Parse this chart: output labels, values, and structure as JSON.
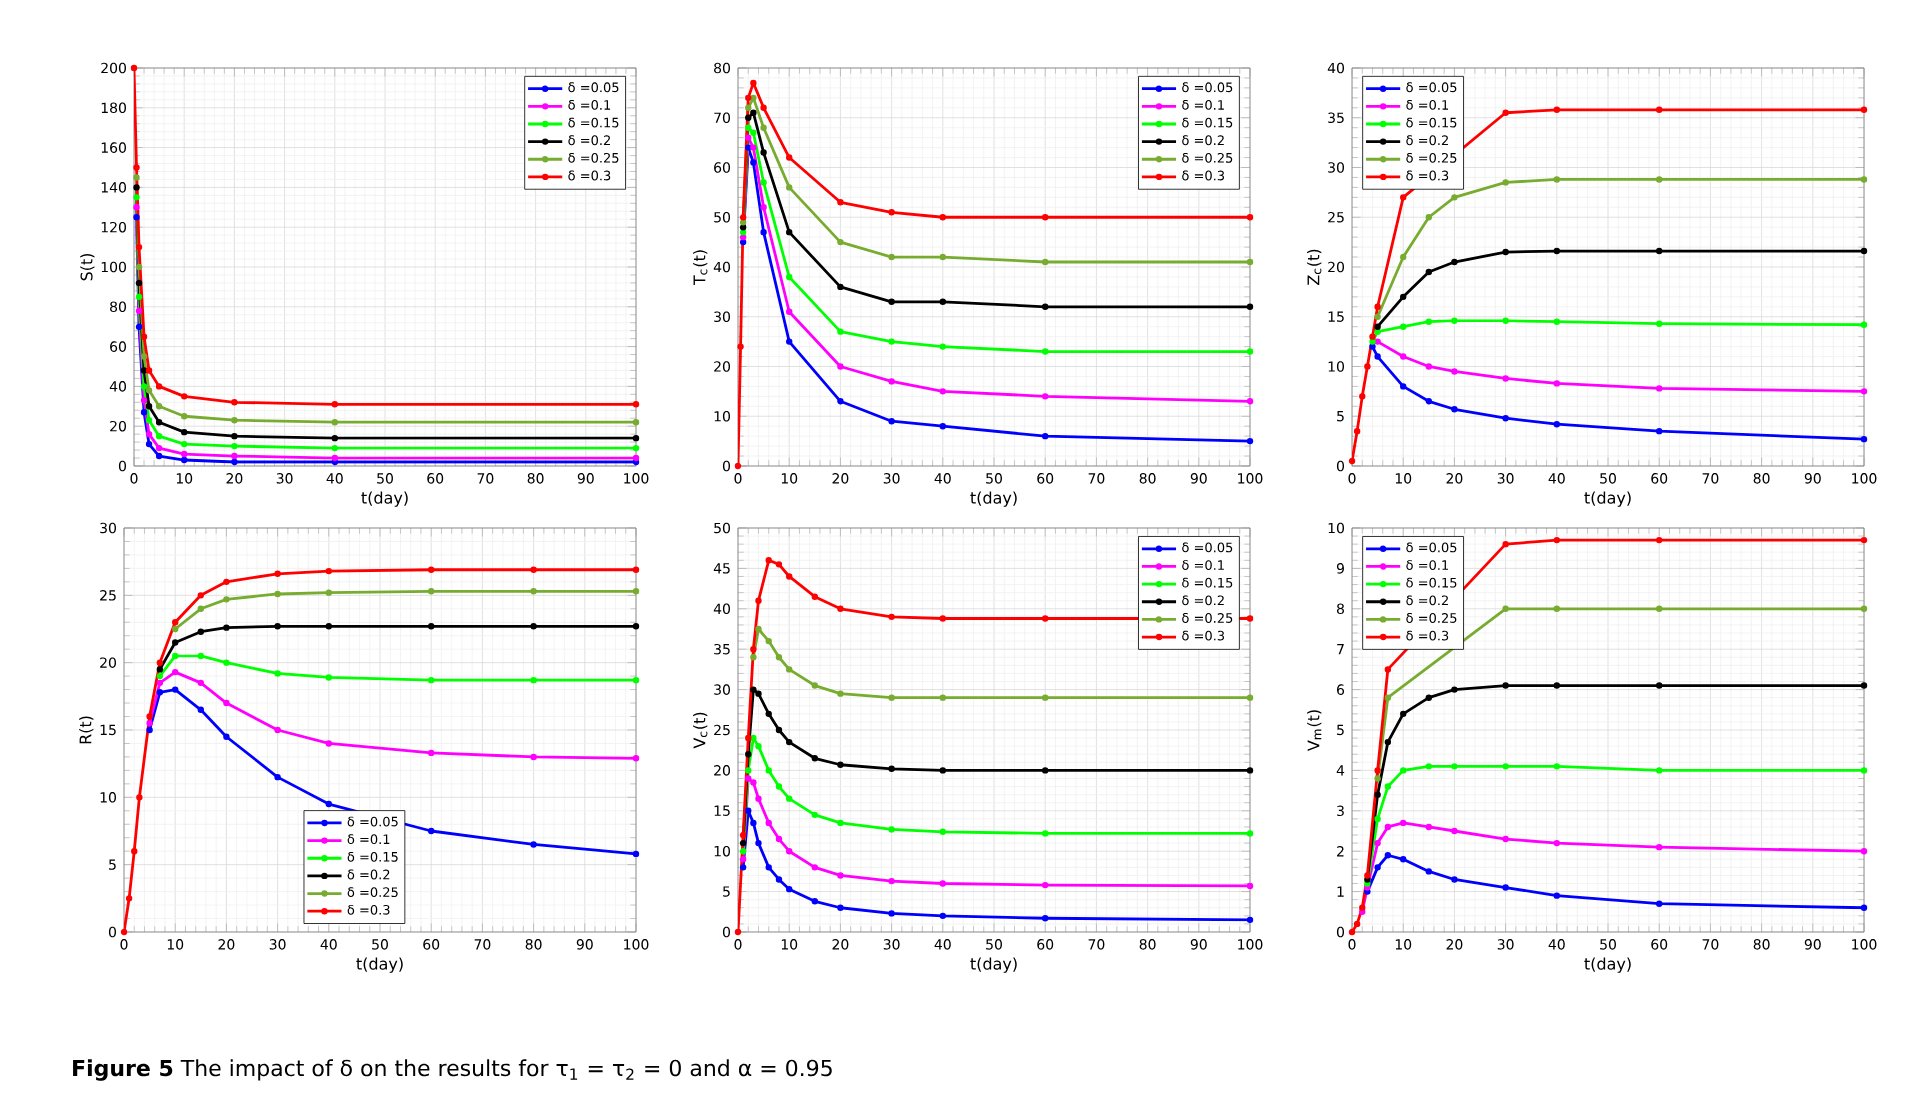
{
  "chart_data": [
    {
      "type": "line",
      "xlabel": "t(day)",
      "ylabel": "S(t)",
      "xlim": [
        0,
        100
      ],
      "xticks": [
        0,
        10,
        20,
        30,
        40,
        50,
        60,
        70,
        80,
        90,
        100
      ],
      "ylim": [
        0,
        200
      ],
      "yticks": [
        0,
        20,
        40,
        60,
        80,
        100,
        120,
        140,
        160,
        180,
        200
      ],
      "grid": true,
      "legend": "top right",
      "marker": "circle",
      "x": [
        0,
        0.5,
        1,
        2,
        3,
        5,
        10,
        20,
        40,
        100
      ],
      "series": [
        {
          "name": "δ =0.05",
          "color": "#0000ff",
          "values": [
            null,
            125,
            70,
            27,
            11,
            5,
            3,
            2,
            2,
            2
          ]
        },
        {
          "name": "δ =0.1",
          "color": "#ff00ff",
          "values": [
            null,
            130,
            78,
            33,
            16,
            9,
            6,
            5,
            4,
            4
          ]
        },
        {
          "name": "δ =0.15",
          "color": "#00ff00",
          "values": [
            null,
            135,
            85,
            40,
            23,
            15,
            11,
            10,
            9,
            9
          ]
        },
        {
          "name": "δ =0.2",
          "color": "#000000",
          "values": [
            null,
            140,
            92,
            48,
            30,
            22,
            17,
            15,
            14,
            14
          ]
        },
        {
          "name": "δ =0.25",
          "color": "#77ac30",
          "values": [
            null,
            145,
            100,
            55,
            38,
            30,
            25,
            23,
            22,
            22
          ]
        },
        {
          "name": "δ =0.3",
          "color": "#ff0000",
          "values": [
            200,
            150,
            110,
            65,
            48,
            40,
            35,
            32,
            31,
            31
          ]
        }
      ]
    },
    {
      "type": "line",
      "xlabel": "t(day)",
      "ylabel": "T$_{c}$(t)",
      "xlim": [
        0,
        100
      ],
      "xticks": [
        0,
        10,
        20,
        30,
        40,
        50,
        60,
        70,
        80,
        90,
        100
      ],
      "ylim": [
        0,
        80
      ],
      "yticks": [
        0,
        10,
        20,
        30,
        40,
        50,
        60,
        70,
        80
      ],
      "grid": true,
      "legend": "top right",
      "marker": "circle",
      "x": [
        0,
        0.5,
        1,
        2,
        3,
        5,
        10,
        20,
        30,
        40,
        60,
        100
      ],
      "series": [
        {
          "name": "δ =0.05",
          "color": "#0000ff",
          "values": [
            null,
            null,
            45,
            64,
            61,
            47,
            25,
            13,
            9,
            8,
            6,
            5
          ]
        },
        {
          "name": "δ =0.1",
          "color": "#ff00ff",
          "values": [
            null,
            null,
            46,
            66,
            64,
            52,
            31,
            20,
            17,
            15,
            14,
            13
          ]
        },
        {
          "name": "δ =0.15",
          "color": "#00ff00",
          "values": [
            null,
            null,
            47,
            68,
            67,
            57,
            38,
            27,
            25,
            24,
            23,
            23
          ]
        },
        {
          "name": "δ =0.2",
          "color": "#000000",
          "values": [
            null,
            null,
            48,
            70,
            71,
            63,
            47,
            36,
            33,
            33,
            32,
            32
          ]
        },
        {
          "name": "δ =0.25",
          "color": "#77ac30",
          "values": [
            null,
            null,
            49,
            72,
            74,
            68,
            56,
            45,
            42,
            42,
            41,
            41
          ]
        },
        {
          "name": "δ =0.3",
          "color": "#ff0000",
          "values": [
            0,
            24,
            50,
            74,
            77,
            72,
            62,
            53,
            51,
            50,
            50,
            50
          ]
        }
      ]
    },
    {
      "type": "line",
      "xlabel": "t(day)",
      "ylabel": "Z$_{c}$(t)",
      "xlim": [
        0,
        100
      ],
      "xticks": [
        0,
        10,
        20,
        30,
        40,
        50,
        60,
        70,
        80,
        90,
        100
      ],
      "ylim": [
        0,
        40
      ],
      "yticks": [
        0,
        5,
        10,
        15,
        20,
        25,
        30,
        35,
        40
      ],
      "grid": true,
      "legend": "top left",
      "marker": "circle",
      "x": [
        0,
        1,
        2,
        3,
        4,
        5,
        10,
        15,
        20,
        30,
        40,
        60,
        100
      ],
      "series": [
        {
          "name": "δ =0.05",
          "color": "#0000ff",
          "values": [
            null,
            null,
            null,
            null,
            12,
            11,
            8,
            6.5,
            5.7,
            4.8,
            4.2,
            3.5,
            2.7
          ]
        },
        {
          "name": "δ =0.1",
          "color": "#ff00ff",
          "values": [
            null,
            null,
            null,
            null,
            null,
            12.5,
            11,
            10,
            9.5,
            8.8,
            8.3,
            7.8,
            7.5
          ]
        },
        {
          "name": "δ =0.15",
          "color": "#00ff00",
          "values": [
            null,
            null,
            null,
            null,
            12.5,
            13.5,
            14,
            14.5,
            14.6,
            14.6,
            14.5,
            14.3,
            14.2
          ]
        },
        {
          "name": "δ =0.2",
          "color": "#000000",
          "values": [
            null,
            null,
            null,
            null,
            null,
            14,
            17,
            19.5,
            20.5,
            21.5,
            21.6,
            21.6,
            21.6
          ]
        },
        {
          "name": "δ =0.25",
          "color": "#77ac30",
          "values": [
            null,
            null,
            null,
            null,
            null,
            15,
            21,
            25,
            27,
            28.5,
            28.8,
            28.8,
            28.8
          ]
        },
        {
          "name": "δ =0.3",
          "color": "#ff0000",
          "values": [
            0.5,
            3.5,
            7,
            10,
            13,
            16,
            27,
            null,
            null,
            35.5,
            35.8,
            35.8,
            35.8
          ]
        }
      ]
    },
    {
      "type": "line",
      "xlabel": "t(day)",
      "ylabel": "R(t)",
      "xlim": [
        0,
        100
      ],
      "xticks": [
        0,
        10,
        20,
        30,
        40,
        50,
        60,
        70,
        80,
        90,
        100
      ],
      "ylim": [
        0,
        30
      ],
      "yticks": [
        0,
        5,
        10,
        15,
        20,
        25,
        30
      ],
      "grid": true,
      "legend": "bottom",
      "marker": "circle",
      "x": [
        0,
        1,
        2,
        3,
        5,
        7,
        10,
        15,
        20,
        30,
        40,
        60,
        80,
        100
      ],
      "series": [
        {
          "name": "δ =0.05",
          "color": "#0000ff",
          "values": [
            null,
            null,
            null,
            null,
            15,
            17.8,
            18,
            16.5,
            14.5,
            11.5,
            9.5,
            7.5,
            6.5,
            5.8
          ]
        },
        {
          "name": "δ =0.1",
          "color": "#ff00ff",
          "values": [
            null,
            null,
            null,
            null,
            15.5,
            18.5,
            19.3,
            18.5,
            17,
            15,
            14,
            13.3,
            13,
            12.9
          ]
        },
        {
          "name": "δ =0.15",
          "color": "#00ff00",
          "values": [
            null,
            null,
            null,
            null,
            null,
            19,
            20.5,
            20.5,
            20,
            19.2,
            18.9,
            18.7,
            18.7,
            18.7
          ]
        },
        {
          "name": "δ =0.2",
          "color": "#000000",
          "values": [
            null,
            null,
            null,
            null,
            null,
            19.5,
            21.5,
            22.3,
            22.6,
            22.7,
            22.7,
            22.7,
            22.7,
            22.7
          ]
        },
        {
          "name": "δ =0.25",
          "color": "#77ac30",
          "values": [
            null,
            null,
            null,
            null,
            null,
            null,
            22.5,
            24,
            24.7,
            25.1,
            25.2,
            25.3,
            25.3,
            25.3
          ]
        },
        {
          "name": "δ =0.3",
          "color": "#ff0000",
          "values": [
            0,
            2.5,
            6,
            10,
            16,
            20,
            23,
            25,
            26,
            26.6,
            26.8,
            26.9,
            26.9,
            26.9
          ]
        }
      ]
    },
    {
      "type": "line",
      "xlabel": "t(day)",
      "ylabel": "V$_{c}$(t)",
      "xlim": [
        0,
        100
      ],
      "xticks": [
        0,
        10,
        20,
        30,
        40,
        50,
        60,
        70,
        80,
        90,
        100
      ],
      "ylim": [
        0,
        50
      ],
      "yticks": [
        0,
        5,
        10,
        15,
        20,
        25,
        30,
        35,
        40,
        45,
        50
      ],
      "grid": true,
      "legend": "top right",
      "marker": "circle",
      "x": [
        0,
        1,
        2,
        3,
        4,
        6,
        8,
        10,
        15,
        20,
        30,
        40,
        60,
        100
      ],
      "series": [
        {
          "name": "δ =0.05",
          "color": "#0000ff",
          "values": [
            null,
            8,
            15,
            13.5,
            11,
            8,
            6.5,
            5.3,
            3.8,
            3,
            2.3,
            2,
            1.7,
            1.5
          ]
        },
        {
          "name": "δ =0.1",
          "color": "#ff00ff",
          "values": [
            null,
            9,
            19,
            18.5,
            16.5,
            13.5,
            11.5,
            10,
            8,
            7,
            6.3,
            6,
            5.8,
            5.7
          ]
        },
        {
          "name": "δ =0.15",
          "color": "#00ff00",
          "values": [
            null,
            10,
            20,
            24,
            23,
            20,
            18,
            16.5,
            14.5,
            13.5,
            12.7,
            12.4,
            12.2,
            12.2
          ]
        },
        {
          "name": "δ =0.2",
          "color": "#000000",
          "values": [
            null,
            11,
            22,
            30,
            29.5,
            27,
            25,
            23.5,
            21.5,
            20.7,
            20.2,
            20,
            20,
            20
          ]
        },
        {
          "name": "δ =0.25",
          "color": "#77ac30",
          "values": [
            null,
            null,
            null,
            34,
            37.5,
            36,
            34,
            32.5,
            30.5,
            29.5,
            29,
            29,
            29,
            29
          ]
        },
        {
          "name": "δ =0.3",
          "color": "#ff0000",
          "values": [
            0,
            12,
            24,
            35,
            41,
            46,
            45.5,
            44,
            41.5,
            40,
            39,
            38.8,
            38.8,
            38.8
          ]
        }
      ]
    },
    {
      "type": "line",
      "xlabel": "t(day)",
      "ylabel": "V$_{m}$(t)",
      "xlim": [
        0,
        100
      ],
      "xticks": [
        0,
        10,
        20,
        30,
        40,
        50,
        60,
        70,
        80,
        90,
        100
      ],
      "ylim": [
        0,
        10
      ],
      "yticks": [
        0,
        1,
        2,
        3,
        4,
        5,
        6,
        7,
        8,
        9,
        10
      ],
      "grid": true,
      "legend": "top left",
      "marker": "circle",
      "x": [
        0,
        1,
        2,
        3,
        5,
        7,
        10,
        15,
        20,
        30,
        40,
        60,
        100
      ],
      "annotations": [
        "**Figure 5** The impact of δ on the results for τ$_{1}$ = τ$_{2}$ = 0 and α = 0.95"
      ],
      "series": [
        {
          "name": "δ =0.05",
          "color": "#0000ff",
          "values": [
            null,
            null,
            null,
            1,
            1.6,
            1.9,
            1.8,
            1.5,
            1.3,
            1.1,
            0.9,
            0.7,
            0.6
          ]
        },
        {
          "name": "δ =0.1",
          "color": "#ff00ff",
          "values": [
            null,
            null,
            0.5,
            1.1,
            2.2,
            2.6,
            2.7,
            2.6,
            2.5,
            2.3,
            2.2,
            2.1,
            2.0
          ]
        },
        {
          "name": "δ =0.15",
          "color": "#00ff00",
          "values": [
            null,
            null,
            null,
            1.2,
            2.8,
            3.6,
            4.0,
            4.1,
            4.1,
            4.1,
            4.1,
            4.0,
            4.0
          ]
        },
        {
          "name": "δ =0.2",
          "color": "#000000",
          "values": [
            null,
            null,
            null,
            1.3,
            3.4,
            4.7,
            5.4,
            5.8,
            6.0,
            6.1,
            6.1,
            6.1,
            6.1
          ]
        },
        {
          "name": "δ =0.25",
          "color": "#77ac30",
          "values": [
            null,
            null,
            null,
            null,
            3.8,
            5.8,
            null,
            null,
            null,
            8.0,
            8.0,
            8.0,
            8.0
          ]
        },
        {
          "name": "δ =0.3",
          "color": "#ff0000",
          "values": [
            0,
            0.2,
            0.6,
            1.4,
            4.0,
            6.5,
            null,
            null,
            null,
            9.6,
            9.7,
            9.7,
            9.7
          ]
        }
      ]
    }
  ]
}
